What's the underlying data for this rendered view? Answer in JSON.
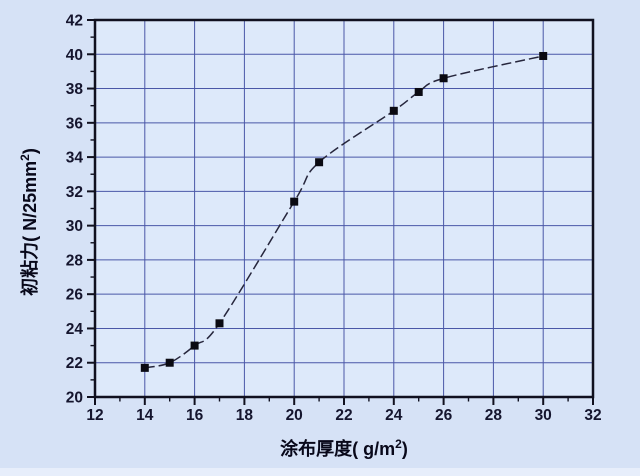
{
  "chart_data": {
    "type": "line",
    "title": "",
    "xlabel": "涂布厚度( g/m²)",
    "ylabel": "初粘力( N/25mm²)",
    "x": [
      14,
      15,
      16,
      17,
      20,
      21,
      24,
      25,
      26,
      30
    ],
    "y": [
      21.7,
      22.0,
      23.0,
      24.3,
      31.4,
      33.7,
      36.7,
      37.8,
      38.6,
      39.9
    ],
    "xlim": [
      12,
      32
    ],
    "ylim": [
      20,
      42
    ],
    "x_major_ticks": [
      12,
      14,
      16,
      18,
      20,
      22,
      24,
      26,
      28,
      30,
      32
    ],
    "y_major_ticks": [
      20,
      22,
      24,
      26,
      28,
      30,
      32,
      34,
      36,
      38,
      40,
      42
    ],
    "minor_tick_step": 1,
    "grid": true,
    "legend": "none",
    "marker": "square",
    "line_style": "dashed",
    "colors": {
      "outer_background": "#d6e2f6",
      "plot_background": "#dde9fa",
      "bottom_strip": "#e7eefb",
      "gridline": "#4a57a7",
      "axis_frame": "#10101f",
      "curve": "#26263c",
      "marker": "#0a0a12",
      "tick_label": "#15152e",
      "axis_title": "#08081a"
    }
  }
}
